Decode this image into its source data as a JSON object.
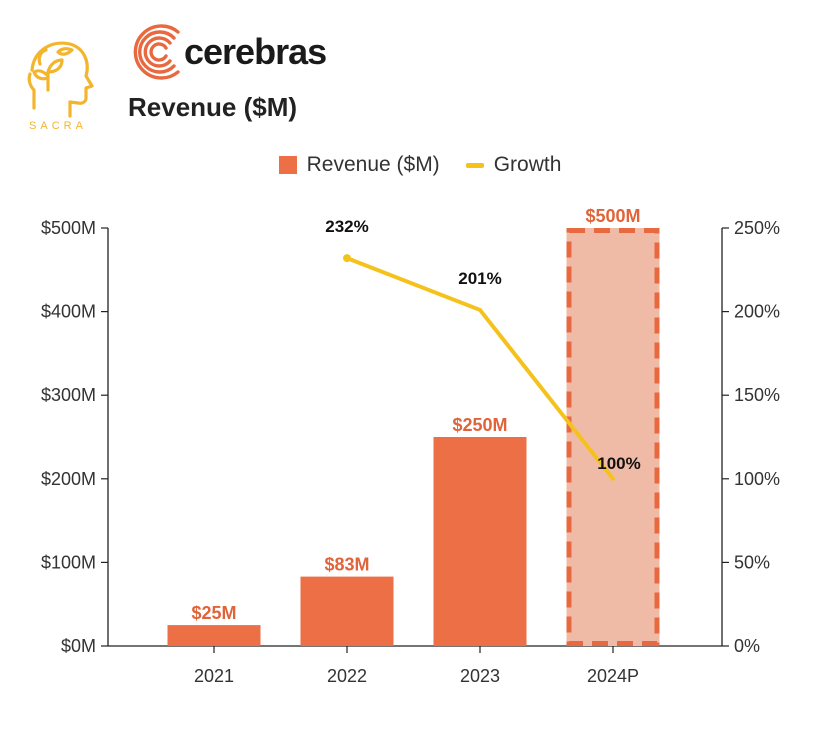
{
  "header": {
    "sacra_wordmark": "SACRA",
    "brand_name": "cerebras",
    "chart_title": "Revenue ($M)"
  },
  "colors": {
    "bar": "#EC6F45",
    "bar_projected_fill": "#F0BBA6",
    "bar_projected_border": "#E8693F",
    "growth_line": "#F5C21C",
    "sacra_gold": "#F2B52D",
    "brand_orange": "#E8693F"
  },
  "icons": {
    "sacra_logo": "head-with-sprout-icon",
    "brand_mark": "concentric-arcs-icon"
  },
  "chart_data": {
    "type": "bar",
    "title": "Revenue ($M)",
    "categories": [
      "2021",
      "2022",
      "2023",
      "2024P"
    ],
    "series": [
      {
        "name": "Revenue ($M)",
        "type": "bar",
        "values": [
          25,
          83,
          250,
          500
        ],
        "labels": [
          "$25M",
          "$83M",
          "$250M",
          "$500M"
        ],
        "projected": [
          false,
          false,
          false,
          true
        ]
      },
      {
        "name": "Growth",
        "type": "line",
        "axis": "right",
        "x": [
          "2022",
          "2023",
          "2024P"
        ],
        "values": [
          232,
          201,
          100
        ],
        "labels": [
          "232%",
          "201%",
          "100%"
        ]
      }
    ],
    "left_axis": {
      "ylim": [
        0,
        500
      ],
      "ticks": [
        0,
        100,
        200,
        300,
        400,
        500
      ],
      "tick_labels": [
        "$0M",
        "$100M",
        "$200M",
        "$300M",
        "$400M",
        "$500M"
      ]
    },
    "right_axis": {
      "ylim": [
        0,
        250
      ],
      "ticks": [
        0,
        50,
        100,
        150,
        200,
        250
      ],
      "tick_labels": [
        "0%",
        "50%",
        "100%",
        "150%",
        "200%",
        "250%"
      ]
    },
    "legend": {
      "position": "top-center",
      "items": [
        "Revenue ($M)",
        "Growth"
      ]
    },
    "grid": false
  }
}
